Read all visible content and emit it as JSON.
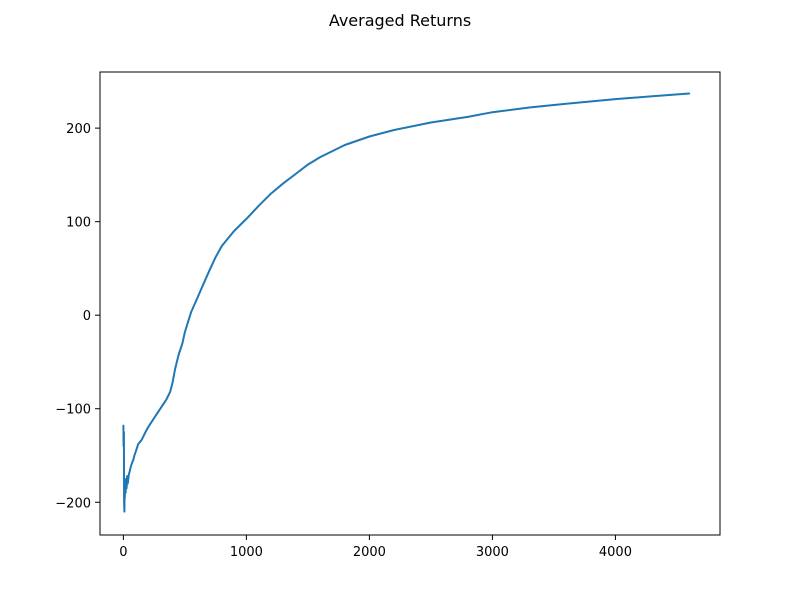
{
  "chart_data": {
    "type": "line",
    "title": "Averaged Returns",
    "xlabel": "",
    "ylabel": "",
    "xlim": [
      -190,
      4850
    ],
    "ylim": [
      -235,
      260
    ],
    "xticks": [
      {
        "value": 0,
        "label": "0"
      },
      {
        "value": 1000,
        "label": "1000"
      },
      {
        "value": 2000,
        "label": "2000"
      },
      {
        "value": 3000,
        "label": "3000"
      },
      {
        "value": 4000,
        "label": "4000"
      }
    ],
    "yticks": [
      {
        "value": -200,
        "label": "−200"
      },
      {
        "value": -100,
        "label": "−100"
      },
      {
        "value": 0,
        "label": "0"
      },
      {
        "value": 100,
        "label": "100"
      },
      {
        "value": 200,
        "label": "200"
      }
    ],
    "grid": false,
    "colors": {
      "line": "#1f77b4",
      "axes": "#000000",
      "background": "#ffffff"
    },
    "series": [
      {
        "x": [
          0,
          2,
          4,
          6,
          8,
          10,
          12,
          15,
          18,
          22,
          26,
          30,
          35,
          40,
          45,
          50,
          60,
          70,
          80,
          90,
          100,
          120,
          150,
          180,
          200,
          250,
          300,
          350,
          380,
          400,
          420,
          450,
          480,
          500,
          550,
          600,
          650,
          700,
          750,
          800,
          850,
          900,
          1000,
          1100,
          1200,
          1300,
          1400,
          1500,
          1600,
          1800,
          2000,
          2200,
          2500,
          2800,
          3000,
          3300,
          3600,
          4000,
          4300,
          4600
        ],
        "y": [
          -118,
          -140,
          -125,
          -200,
          -210,
          -185,
          -195,
          -180,
          -190,
          -175,
          -185,
          -172,
          -180,
          -175,
          -170,
          -168,
          -162,
          -158,
          -155,
          -150,
          -146,
          -138,
          -133,
          -125,
          -120,
          -110,
          -100,
          -90,
          -82,
          -72,
          -58,
          -42,
          -30,
          -18,
          3,
          18,
          33,
          48,
          62,
          74,
          82,
          90,
          103,
          117,
          130,
          141,
          151,
          161,
          169,
          182,
          191,
          198,
          206,
          212,
          217,
          222,
          226,
          231,
          234,
          237
        ]
      }
    ]
  }
}
